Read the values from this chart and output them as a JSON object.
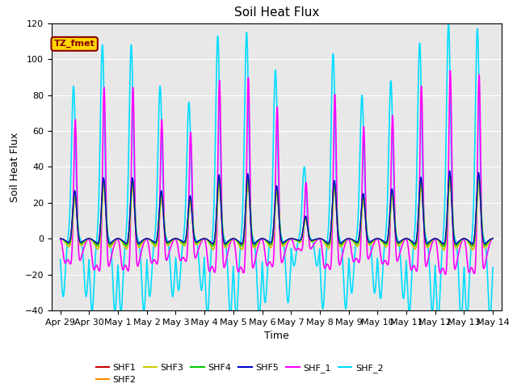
{
  "title": "Soil Heat Flux",
  "xlabel": "Time",
  "ylabel": "Soil Heat Flux",
  "ylim": [
    -40,
    120
  ],
  "bg_color": "#E8E8E8",
  "annotation_text": "TZ_fmet",
  "annotation_color": "#8B0000",
  "annotation_bg": "#FFD700",
  "series_order": [
    "SHF_2",
    "SHF_1",
    "SHF1",
    "SHF2",
    "SHF3",
    "SHF4",
    "SHF5"
  ],
  "series": {
    "SHF1": {
      "color": "#CC0000",
      "lw": 1.0
    },
    "SHF2": {
      "color": "#FF8C00",
      "lw": 1.0
    },
    "SHF3": {
      "color": "#CCCC00",
      "lw": 1.0
    },
    "SHF4": {
      "color": "#00CC00",
      "lw": 1.0
    },
    "SHF5": {
      "color": "#0000CC",
      "lw": 1.0
    },
    "SHF_1": {
      "color": "#FF00FF",
      "lw": 1.2
    },
    "SHF_2": {
      "color": "#00DDFF",
      "lw": 1.2
    }
  },
  "legend_order": [
    "SHF1",
    "SHF2",
    "SHF3",
    "SHF4",
    "SHF5",
    "SHF_1",
    "SHF_2"
  ],
  "x_tick_labels": [
    "Apr 29",
    "Apr 30",
    "May 1",
    "May 2",
    "May 3",
    "May 4",
    "May 5",
    "May 6",
    "May 7",
    "May 8",
    "May 9",
    "May 10",
    "May 11",
    "May 12",
    "May 13",
    "May 14"
  ],
  "x_tick_positions": [
    0,
    1,
    2,
    3,
    4,
    5,
    6,
    7,
    8,
    9,
    10,
    11,
    12,
    13,
    14,
    15
  ],
  "day_amplitudes": [
    85,
    108,
    108,
    85,
    76,
    113,
    115,
    94,
    40,
    103,
    80,
    88,
    109,
    120,
    117
  ],
  "figsize": [
    6.4,
    4.8
  ],
  "dpi": 100
}
